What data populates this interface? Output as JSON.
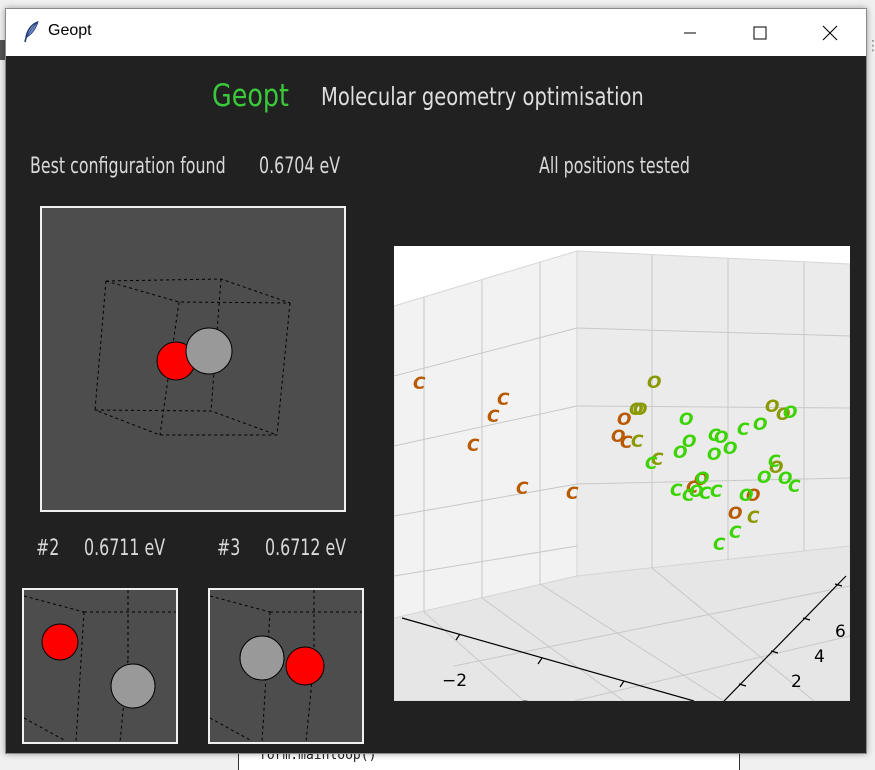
{
  "window": {
    "title": "Geopt"
  },
  "header": {
    "app_name": "Geopt",
    "subtitle": "Molecular geometry optimisation"
  },
  "best": {
    "label": "Best configuration found",
    "energy": "0.6704 eV"
  },
  "plot": {
    "title": "All positions tested"
  },
  "runners": [
    {
      "rank": "#2",
      "energy": "0.6711 eV"
    },
    {
      "rank": "#3",
      "energy": "0.6712 eV"
    }
  ],
  "background": {
    "code_line": "form.mainloop()"
  },
  "colors": {
    "accent_green": "#39c93a",
    "oxygen_atom": "#ff0000",
    "carbon_atom": "#999999",
    "panel_bg": "#4d4d4d",
    "window_bg": "#212121"
  },
  "chart_data": {
    "type": "scatter",
    "title": "All positions tested",
    "dimensions": 3,
    "axis_x_ticks": [
      "−2"
    ],
    "axis_y_ticks": [
      "2",
      "4",
      "6"
    ],
    "marker_labels": [
      "C",
      "O"
    ],
    "series": [
      {
        "name": "",
        "color": "#b85a00",
        "points": [
          {
            "label": "C",
            "sx": 417,
            "sy": 382
          },
          {
            "label": "C",
            "sx": 501,
            "sy": 398
          },
          {
            "label": "C",
            "sx": 491,
            "sy": 415
          },
          {
            "label": "C",
            "sx": 471,
            "sy": 444
          },
          {
            "label": "C",
            "sx": 520,
            "sy": 487
          },
          {
            "label": "C",
            "sx": 570,
            "sy": 492
          },
          {
            "label": "O",
            "sx": 615,
            "sy": 435
          },
          {
            "label": "C",
            "sx": 624,
            "sy": 441
          },
          {
            "label": "O",
            "sx": 621,
            "sy": 418
          },
          {
            "label": "O",
            "sx": 698,
            "sy": 478
          },
          {
            "label": "C",
            "sx": 690,
            "sy": 486
          },
          {
            "label": "O",
            "sx": 732,
            "sy": 512
          },
          {
            "label": "O",
            "sx": 750,
            "sy": 494
          }
        ]
      },
      {
        "name": "",
        "color": "#8a9900",
        "points": [
          {
            "label": "O",
            "sx": 651,
            "sy": 381
          },
          {
            "label": "O",
            "sx": 633,
            "sy": 408
          },
          {
            "label": "O",
            "sx": 637,
            "sy": 408
          },
          {
            "label": "O",
            "sx": 769,
            "sy": 405
          },
          {
            "label": "O",
            "sx": 780,
            "sy": 413
          },
          {
            "label": "O",
            "sx": 773,
            "sy": 466
          },
          {
            "label": "C",
            "sx": 635,
            "sy": 440
          },
          {
            "label": "C",
            "sx": 655,
            "sy": 458
          },
          {
            "label": "C",
            "sx": 751,
            "sy": 516
          }
        ]
      },
      {
        "name": "",
        "color": "#3cd400",
        "points": [
          {
            "label": "O",
            "sx": 683,
            "sy": 418
          },
          {
            "label": "O",
            "sx": 686,
            "sy": 440
          },
          {
            "label": "O",
            "sx": 677,
            "sy": 451
          },
          {
            "label": "C",
            "sx": 712,
            "sy": 434
          },
          {
            "label": "O",
            "sx": 718,
            "sy": 436
          },
          {
            "label": "O",
            "sx": 711,
            "sy": 453
          },
          {
            "label": "O",
            "sx": 727,
            "sy": 447
          },
          {
            "label": "C",
            "sx": 741,
            "sy": 428
          },
          {
            "label": "O",
            "sx": 757,
            "sy": 423
          },
          {
            "label": "O",
            "sx": 787,
            "sy": 411
          },
          {
            "label": "C",
            "sx": 649,
            "sy": 462
          },
          {
            "label": "O",
            "sx": 699,
            "sy": 477
          },
          {
            "label": "C",
            "sx": 674,
            "sy": 489
          },
          {
            "label": "C",
            "sx": 686,
            "sy": 494
          },
          {
            "label": "O",
            "sx": 693,
            "sy": 490
          },
          {
            "label": "C",
            "sx": 703,
            "sy": 492
          },
          {
            "label": "C",
            "sx": 714,
            "sy": 490
          },
          {
            "label": "O",
            "sx": 761,
            "sy": 476
          },
          {
            "label": "C",
            "sx": 772,
            "sy": 460
          },
          {
            "label": "O",
            "sx": 782,
            "sy": 477
          },
          {
            "label": "C",
            "sx": 792,
            "sy": 485
          },
          {
            "label": "O",
            "sx": 743,
            "sy": 494
          },
          {
            "label": "C",
            "sx": 733,
            "sy": 531
          },
          {
            "label": "C",
            "sx": 717,
            "sy": 543
          }
        ]
      }
    ]
  }
}
